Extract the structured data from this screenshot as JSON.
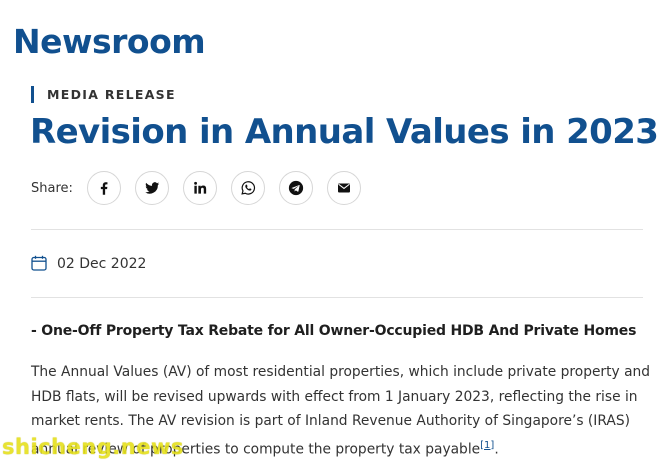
{
  "header": {
    "section_title": "Newsroom"
  },
  "article": {
    "category": "MEDIA RELEASE",
    "title": "Revision in Annual Values in 2023",
    "share": {
      "label": "Share:",
      "buttons": [
        {
          "icon": "facebook-icon"
        },
        {
          "icon": "twitter-icon"
        },
        {
          "icon": "linkedin-icon"
        },
        {
          "icon": "whatsapp-icon"
        },
        {
          "icon": "telegram-icon"
        },
        {
          "icon": "email-icon"
        }
      ]
    },
    "date": "02 Dec 2022",
    "date_icon": "calendar-icon",
    "subheading": "- One-Off Property Tax Rebate for All Owner-Occupied HDB And Private Homes",
    "body_lines": [
      "The Annual Values (AV) of most residential properties, which include private property and",
      "HDB flats, will be revised upwards with effect from 1 January 2023, reflecting the rise in",
      "market rents. The AV revision is part of Inland Revenue Authority of Singapore’s (IRAS)",
      "annual review of properties to compute the property tax payable"
    ],
    "footnote_ref": "[1]",
    "body_end": "."
  },
  "watermark": "shicheng.news",
  "colors": {
    "brand": "#11508f",
    "text": "#333333",
    "divider": "#e2e2e2"
  }
}
